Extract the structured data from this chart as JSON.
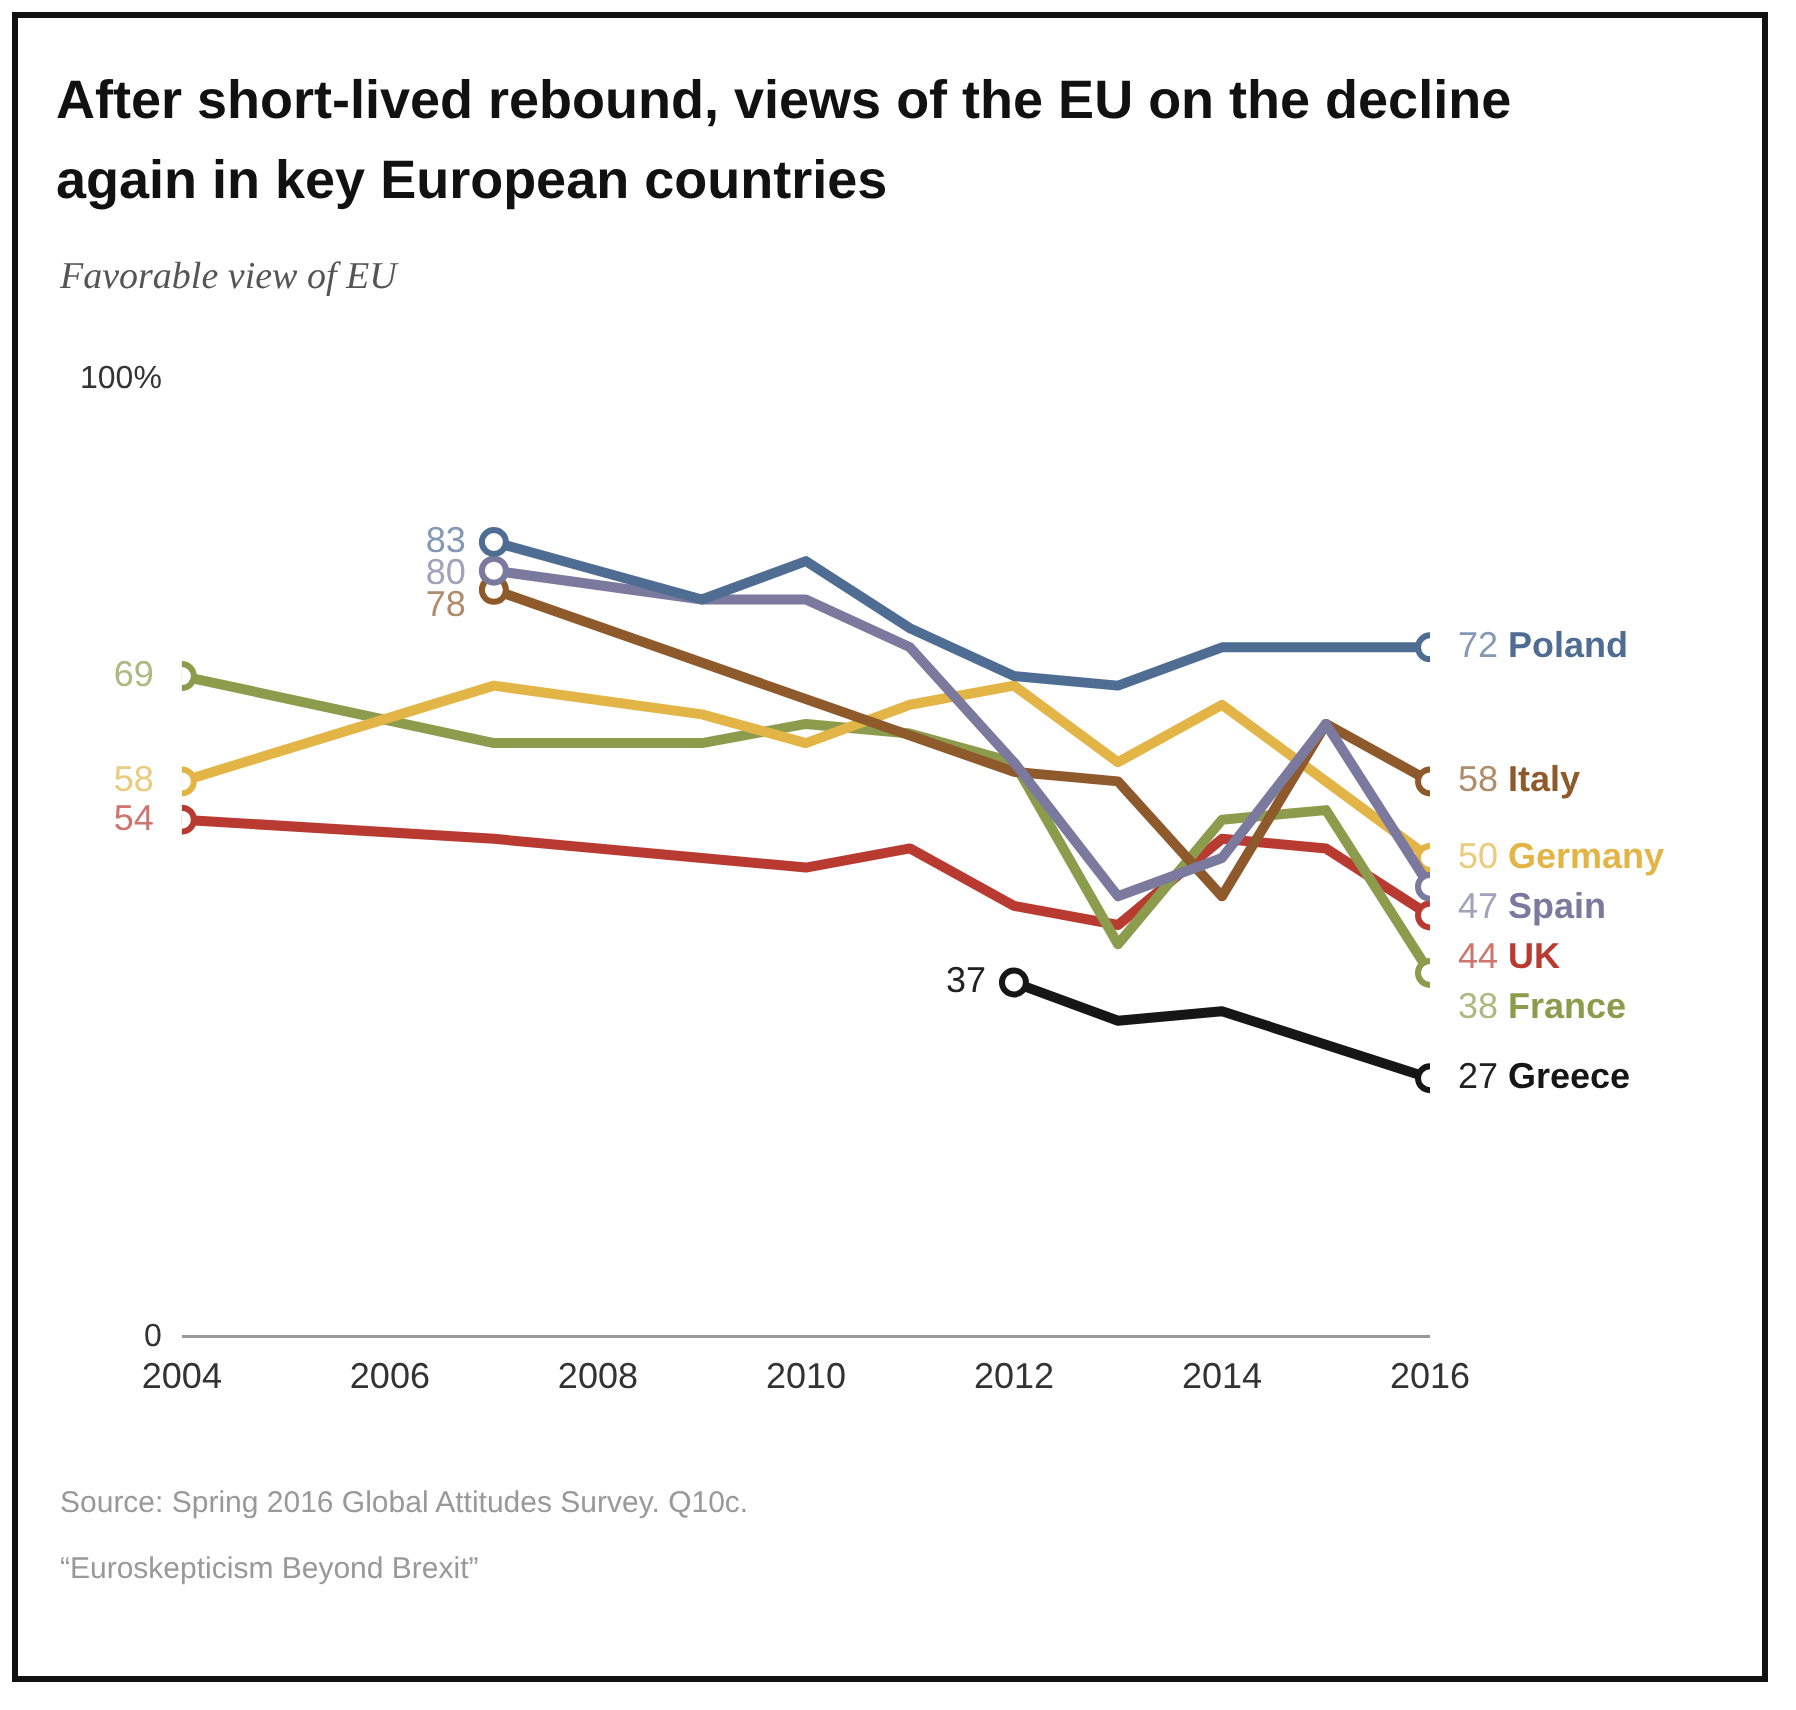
{
  "chart_data": {
    "type": "line",
    "title": "After short-lived rebound, views of the EU on the decline again in key European countries",
    "subtitle": "Favorable view of EU",
    "annotations": [
      "Source: Spring 2016 Global Attitudes Survey. Q10c.",
      "“Euroskepticism Beyond Brexit”"
    ],
    "xlim": [
      2004,
      2016
    ],
    "xticks": [
      2004,
      2006,
      2008,
      2010,
      2012,
      2014,
      2016
    ],
    "ylim": [
      0,
      100
    ],
    "yticks": [
      {
        "value": 0,
        "label": "0"
      },
      {
        "value": 100,
        "label": "100%"
      }
    ],
    "grid": false,
    "legend": false,
    "line_style": "solid",
    "series": [
      {
        "name": "Poland",
        "color": "#4f6d92",
        "x": [
          2007,
          2009,
          2010,
          2011,
          2012,
          2013,
          2014,
          2015,
          2016
        ],
        "values": [
          83,
          77,
          81,
          74,
          69,
          68,
          72,
          72,
          72
        ],
        "value_labels": [
          "83",
          null,
          null,
          null,
          null,
          null,
          null,
          null,
          "72"
        ]
      },
      {
        "name": "Spain",
        "color": "#7b7a9e",
        "x": [
          2007,
          2009,
          2010,
          2011,
          2012,
          2013,
          2014,
          2015,
          2016
        ],
        "values": [
          80,
          77,
          77,
          72,
          60,
          46,
          50,
          64,
          47
        ],
        "value_labels": [
          "80",
          null,
          null,
          null,
          null,
          null,
          null,
          null,
          "47"
        ]
      },
      {
        "name": "Italy",
        "color": "#8e5a2c",
        "x": [
          2007,
          2012,
          2013,
          2014,
          2015,
          2016
        ],
        "values": [
          78,
          59,
          58,
          46,
          64,
          58
        ],
        "value_labels": [
          "78",
          null,
          null,
          null,
          null,
          "58"
        ]
      },
      {
        "name": "Germany",
        "color": "#e3b547",
        "x": [
          2004,
          2007,
          2009,
          2010,
          2011,
          2012,
          2013,
          2014,
          2015,
          2016
        ],
        "values": [
          58,
          68,
          65,
          62,
          66,
          68,
          60,
          66,
          58,
          50
        ],
        "value_labels": [
          "58",
          null,
          null,
          null,
          null,
          null,
          null,
          null,
          null,
          "50"
        ]
      },
      {
        "name": "France",
        "color": "#8c9c4c",
        "x": [
          2004,
          2007,
          2009,
          2010,
          2011,
          2012,
          2013,
          2014,
          2015,
          2016
        ],
        "values": [
          69,
          62,
          62,
          64,
          63,
          60,
          41,
          54,
          55,
          38
        ],
        "value_labels": [
          "69",
          null,
          null,
          null,
          null,
          null,
          null,
          null,
          null,
          "38"
        ]
      },
      {
        "name": "UK",
        "color": "#b83a30",
        "x": [
          2004,
          2007,
          2009,
          2010,
          2011,
          2012,
          2013,
          2014,
          2015,
          2016
        ],
        "values": [
          54,
          52,
          50,
          49,
          51,
          45,
          43,
          52,
          51,
          44
        ],
        "value_labels": [
          "54",
          null,
          null,
          null,
          null,
          null,
          null,
          null,
          null,
          "44"
        ]
      },
      {
        "name": "Greece",
        "color": "#161616",
        "x": [
          2012,
          2013,
          2014,
          2016
        ],
        "values": [
          37,
          33,
          34,
          27
        ],
        "value_labels": [
          "37",
          null,
          null,
          "27"
        ]
      }
    ]
  }
}
